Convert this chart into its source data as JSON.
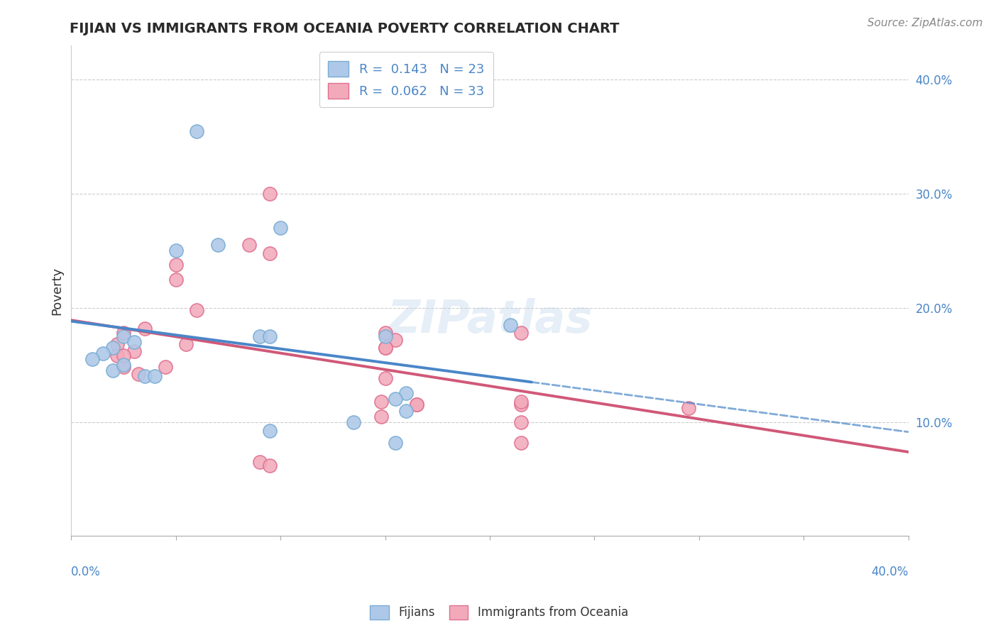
{
  "title": "FIJIAN VS IMMIGRANTS FROM OCEANIA POVERTY CORRELATION CHART",
  "source": "Source: ZipAtlas.com",
  "ylabel": "Poverty",
  "xlim": [
    0.0,
    0.4
  ],
  "ylim": [
    0.0,
    0.43
  ],
  "fijian_R": 0.143,
  "fijian_N": 23,
  "oceania_R": 0.062,
  "oceania_N": 33,
  "fijian_color": "#adc8e8",
  "fijian_edge": "#7aadd4",
  "oceania_color": "#f2aabb",
  "oceania_edge": "#e07090",
  "trend_blue": "#4a86c8",
  "trend_pink": "#d05878",
  "grid_vals": [
    0.4,
    0.3,
    0.2,
    0.1
  ],
  "fijian_x": [
    0.06,
    0.1,
    0.07,
    0.05,
    0.025,
    0.03,
    0.02,
    0.015,
    0.01,
    0.02,
    0.025,
    0.035,
    0.04,
    0.09,
    0.095,
    0.15,
    0.16,
    0.155,
    0.16,
    0.21,
    0.095,
    0.135,
    0.155
  ],
  "fijian_y": [
    0.355,
    0.27,
    0.255,
    0.25,
    0.175,
    0.17,
    0.165,
    0.16,
    0.155,
    0.145,
    0.15,
    0.14,
    0.14,
    0.175,
    0.175,
    0.175,
    0.125,
    0.12,
    0.11,
    0.185,
    0.092,
    0.1,
    0.082
  ],
  "oceania_x": [
    0.095,
    0.085,
    0.095,
    0.05,
    0.05,
    0.06,
    0.035,
    0.025,
    0.022,
    0.03,
    0.022,
    0.025,
    0.032,
    0.045,
    0.055,
    0.025,
    0.15,
    0.155,
    0.15,
    0.15,
    0.215,
    0.15,
    0.148,
    0.215,
    0.148,
    0.215,
    0.295,
    0.165,
    0.215,
    0.215,
    0.165,
    0.09,
    0.095
  ],
  "oceania_y": [
    0.3,
    0.255,
    0.248,
    0.238,
    0.225,
    0.198,
    0.182,
    0.178,
    0.168,
    0.162,
    0.158,
    0.148,
    0.142,
    0.148,
    0.168,
    0.158,
    0.178,
    0.172,
    0.165,
    0.138,
    0.178,
    0.165,
    0.118,
    0.115,
    0.105,
    0.1,
    0.112,
    0.115,
    0.118,
    0.082,
    0.115,
    0.065,
    0.062
  ],
  "background_color": "#ffffff"
}
